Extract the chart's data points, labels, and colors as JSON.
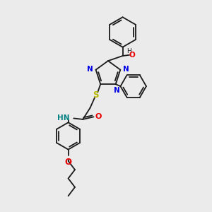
{
  "background_color": "#ebebeb",
  "bond_color": "#1a1a1a",
  "atom_colors": {
    "N": "#0000e6",
    "O": "#e60000",
    "S": "#b8b800",
    "HN": "#008080",
    "C": "#1a1a1a"
  },
  "figsize": [
    3.0,
    3.0
  ],
  "dpi": 100,
  "xlim": [
    0,
    10
  ],
  "ylim": [
    0,
    10
  ]
}
